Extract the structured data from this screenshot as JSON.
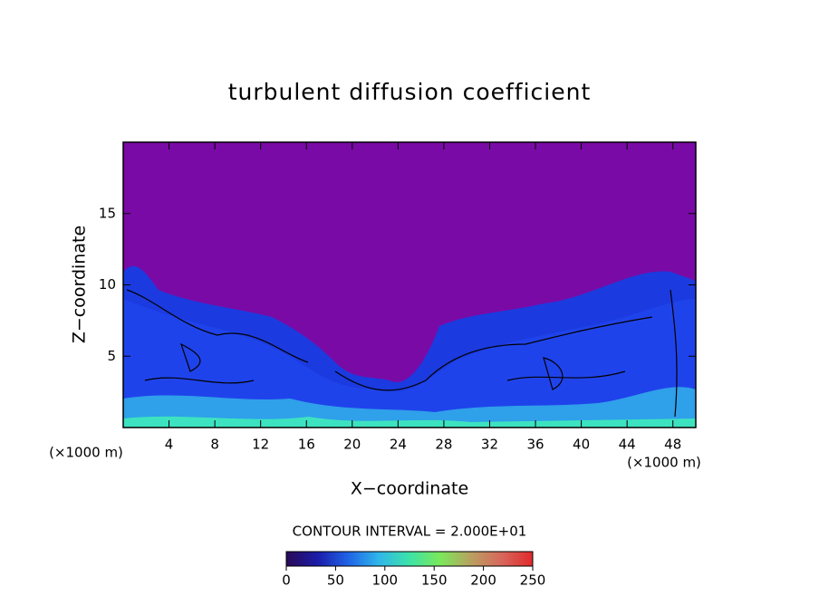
{
  "chart_data": {
    "type": "contour",
    "title": "turbulent diffusion coefficient",
    "x_label": "X−coordinate",
    "y_label": "Z−coordinate",
    "x_unit": "(×1000 m)",
    "y_unit": "(×1000 m)",
    "xlim": [
      0,
      50
    ],
    "xticks": [
      4,
      8,
      12,
      16,
      20,
      24,
      28,
      32,
      36,
      40,
      44,
      48
    ],
    "ylim": [
      0,
      20
    ],
    "yticks": [
      5,
      10,
      15
    ],
    "contour_interval_label": "CONTOUR INTERVAL = 2.000E+01",
    "colorbar": {
      "lim": [
        0,
        250
      ],
      "ticks": [
        0,
        50,
        100,
        150,
        200,
        250
      ],
      "colors": [
        "#2a0a55",
        "#1b1ba8",
        "#1f63e6",
        "#2fb6ea",
        "#3de3a8",
        "#7be85a",
        "#b9a060",
        "#d8665c",
        "#e02a2a"
      ]
    }
  }
}
